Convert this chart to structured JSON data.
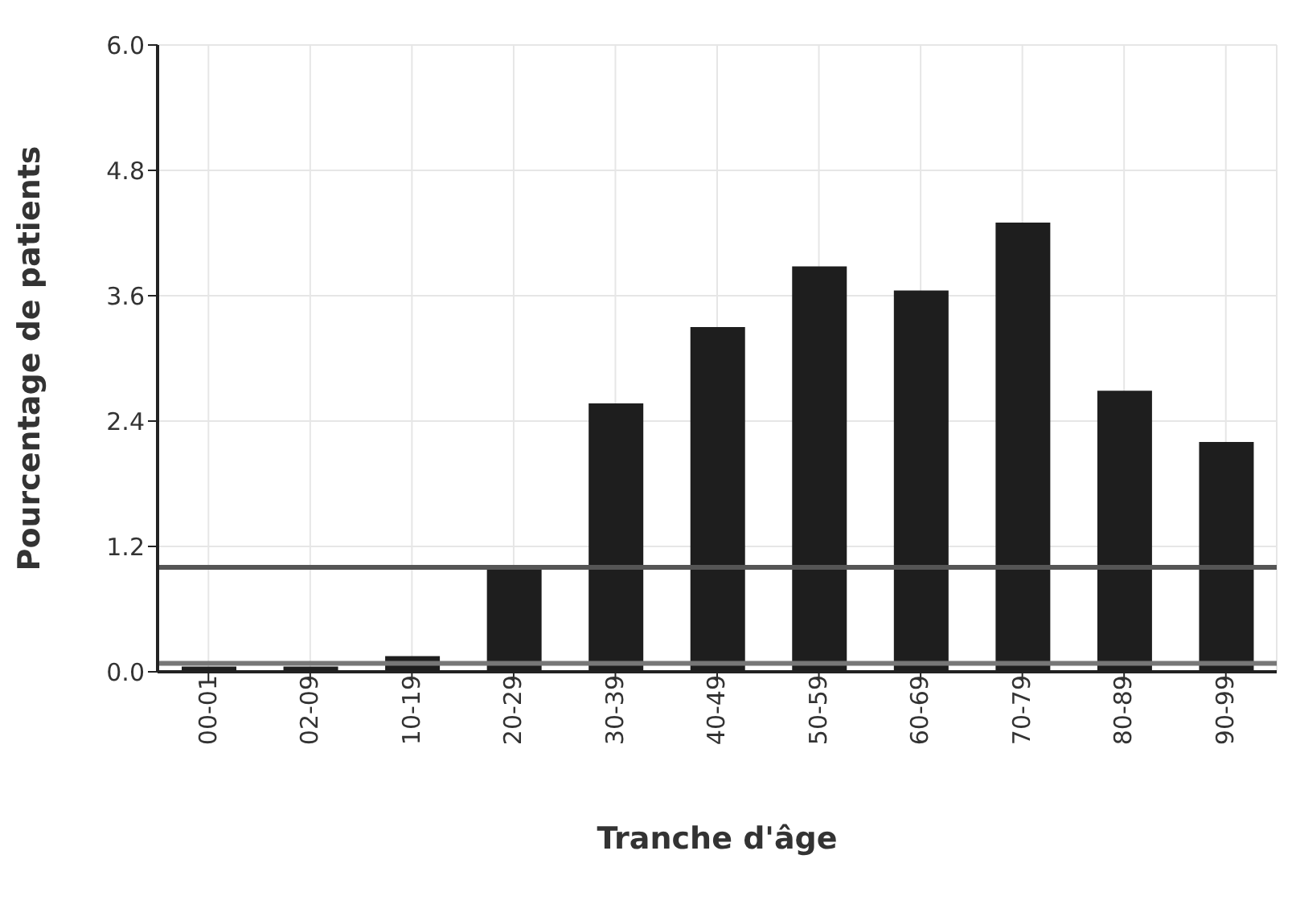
{
  "chart_data": {
    "type": "bar",
    "xlabel": "Tranche d'âge",
    "ylabel": "Pourcentage de patients",
    "categories": [
      "00-01",
      "02-09",
      "10-19",
      "20-29",
      "30-39",
      "40-49",
      "50-59",
      "60-69",
      "70-79",
      "80-89",
      "90-99"
    ],
    "values": [
      0.05,
      0.05,
      0.15,
      1.0,
      2.57,
      3.3,
      3.88,
      3.65,
      4.3,
      2.69,
      2.2
    ],
    "color": "#1e1e1e",
    "ylim": [
      0,
      6
    ],
    "yticks": [
      {
        "value": 0,
        "label": "0.0"
      },
      1.2,
      2.4,
      3.6,
      4.8,
      {
        "value": 6,
        "label": "6.0"
      }
    ],
    "grid": true,
    "ref_lines": [
      {
        "axis": "y",
        "value": 1.0,
        "color": "#555555"
      },
      {
        "axis": "y",
        "value": 0.08,
        "color": "#777777"
      }
    ]
  }
}
